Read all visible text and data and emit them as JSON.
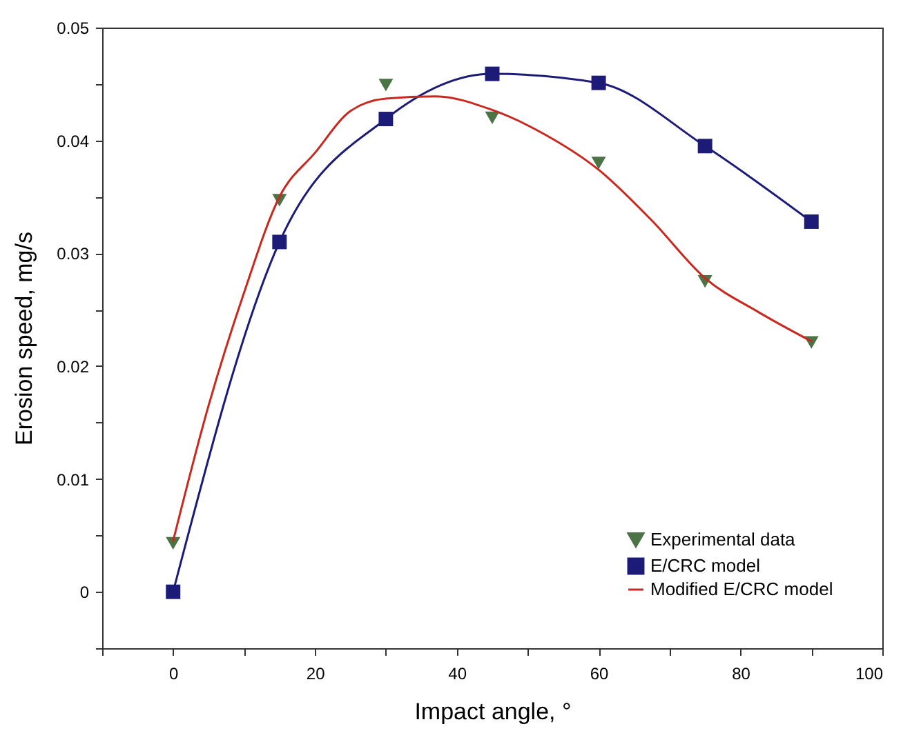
{
  "chart_data": {
    "type": "line",
    "xlabel": "Impact angle, °",
    "ylabel": "Erosion speed, mg/s",
    "xlim": [
      -10,
      100
    ],
    "ylim": [
      -0.005,
      0.05
    ],
    "xticks": [
      {
        "value": -10,
        "label": null
      },
      0,
      {
        "value": 10,
        "label": null
      },
      20,
      {
        "value": 30,
        "label": null
      },
      40,
      {
        "value": 50,
        "label": null
      },
      60,
      {
        "value": 70,
        "label": null
      },
      80,
      {
        "value": 90,
        "label": null
      },
      100
    ],
    "yticks": [
      {
        "value": -0.005,
        "label": null
      },
      0,
      {
        "value": 0.005,
        "label": null
      },
      0.01,
      {
        "value": 0.015,
        "label": null
      },
      0.02,
      {
        "value": 0.025,
        "label": null
      },
      0.03,
      {
        "value": 0.035,
        "label": null
      },
      0.04,
      {
        "value": 0.045,
        "label": null
      },
      0.05
    ],
    "legend": "bottom right",
    "grid": false,
    "series": [
      {
        "name": "Experimental data",
        "type": "scatter",
        "marker": "triangle",
        "color": "#4b7346",
        "x": [
          0,
          15,
          30,
          45,
          60,
          75,
          90
        ],
        "values": [
          0.0043,
          0.0347,
          0.0449,
          0.042,
          0.038,
          0.0275,
          0.0221
        ]
      },
      {
        "name": "E/CRC model",
        "type": "line",
        "marker": "square",
        "color": "#1c1c78",
        "x": [
          0,
          15,
          30,
          45,
          60,
          75,
          90
        ],
        "values": [
          0,
          0.031,
          0.0419,
          0.0459,
          0.0451,
          0.0395,
          0.0328
        ]
      },
      {
        "name": "Modified E/CRC model",
        "type": "line",
        "marker": "none",
        "color": "#c8281e",
        "x": [
          0,
          5,
          10,
          15,
          20,
          25,
          30,
          37,
          45,
          52.5,
          60,
          67.5,
          75,
          82.5,
          90
        ],
        "values": [
          0.0045,
          0.0165,
          0.0265,
          0.035,
          0.0389,
          0.0426,
          0.0437,
          0.0439,
          0.0427,
          0.0405,
          0.0374,
          0.0329,
          0.0278,
          0.0248,
          0.0222
        ]
      }
    ]
  }
}
